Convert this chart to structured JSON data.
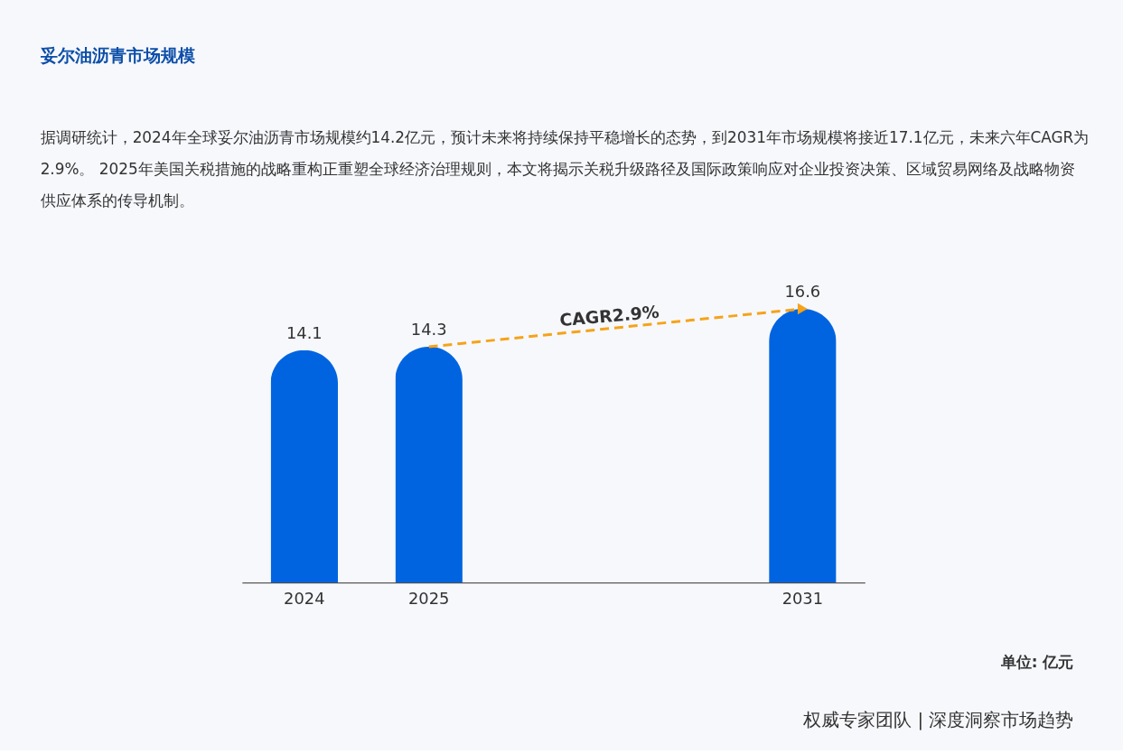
{
  "chart_data": {
    "type": "bar",
    "title": "妥尔油沥青市场规模",
    "subtitle": "据调研统计，2024年全球妥尔油沥青市场规模约14.2亿元，预计未来将持续保持平稳增长的态势，到2031年市场规模将接近17.1亿元，未来六年CAGR为2.9%。 2025年美国关税措施的战略重构正重塑全球经济治理规则，本文将揭示关税升级路径及国际政策响应对企业投资决策、区域贸易网络及战略物资供应体系的传导机制。",
    "categories": [
      "2024",
      "2025",
      null,
      null,
      "2031"
    ],
    "values": [
      14.1,
      14.3,
      null,
      null,
      16.6
    ],
    "color": "#0064e0",
    "data_labels": true,
    "annotations": [
      "CAGR2.9%",
      "单位: 亿元",
      "权威专家团队 | 深度洞察市场趋势"
    ]
  }
}
